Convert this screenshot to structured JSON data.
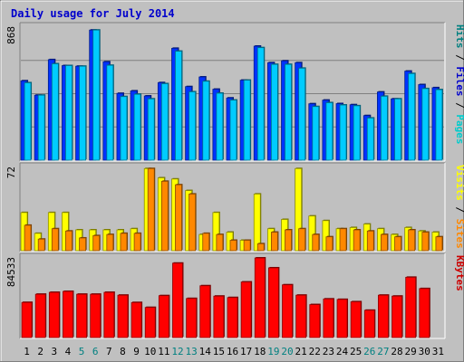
{
  "chart_data": {
    "title": "Daily usage for July 2014",
    "type": "bar",
    "days": [
      "1",
      "2",
      "3",
      "4",
      "5",
      "6",
      "7",
      "8",
      "9",
      "10",
      "11",
      "12",
      "13",
      "14",
      "15",
      "16",
      "17",
      "18",
      "19",
      "20",
      "21",
      "22",
      "23",
      "24",
      "25",
      "26",
      "27",
      "28",
      "29",
      "30",
      "31"
    ],
    "weekend_days": [
      5,
      6,
      12,
      13,
      19,
      20,
      26,
      27
    ],
    "panels": [
      {
        "id": "requests",
        "ymax_label": "868",
        "ymax": 868,
        "right_label": [
          {
            "text": "Pages",
            "color": "#00cccc"
          },
          {
            "text": " / ",
            "color": "#000000"
          },
          {
            "text": "Files",
            "color": "#0000cc"
          },
          {
            "text": " / ",
            "color": "#000000"
          },
          {
            "text": "Hits",
            "color": "#008080"
          }
        ],
        "series": [
          {
            "name": "Hits",
            "color": "#0033ff",
            "values": [
              518,
              424,
              656,
              617,
              613,
              849,
              642,
              436,
              452,
              419,
              506,
              730,
              480,
              543,
              463,
              406,
              522,
              744,
              636,
              648,
              636,
              368,
              392,
              369,
              362,
              291,
              445,
              400,
              581,
              493,
              473
            ]
          },
          {
            "name": "Files",
            "color": "#00ccff",
            "values": [
              505,
              424,
              629,
              617,
              613,
              849,
              619,
              415,
              430,
              400,
              499,
              711,
              446,
              515,
              437,
              392,
              522,
              734,
              625,
              625,
              600,
              350,
              375,
              360,
              355,
              275,
              417,
              400,
              565,
              467,
              460
            ]
          }
        ]
      },
      {
        "id": "visits",
        "ymax_label": "72",
        "ymax": 72,
        "right_label": [
          {
            "text": "Sites",
            "color": "#ff8800"
          },
          {
            "text": " / ",
            "color": "#000000"
          },
          {
            "text": "Visits",
            "color": "#ffff00"
          }
        ],
        "series": [
          {
            "name": "Visits",
            "color": "#ffff00",
            "values": [
              33,
              15,
              33,
              33,
              18,
              18,
              18,
              18,
              19,
              71,
              63,
              62,
              52,
              14,
              33,
              16,
              9,
              49,
              19,
              27,
              71,
              30,
              26,
              19,
              20,
              23,
              19,
              14,
              20,
              17,
              16
            ]
          },
          {
            "name": "Sites",
            "color": "#ff8800",
            "values": [
              22,
              10,
              19,
              17,
              11,
              13,
              14,
              15,
              15,
              71,
              60,
              57,
              49,
              15,
              14,
              9,
              9,
              6,
              16,
              18,
              19,
              14,
              12,
              19,
              18,
              17,
              14,
              12,
              18,
              16,
              12
            ]
          }
        ]
      },
      {
        "id": "kbytes",
        "ymax_label": "84533",
        "ymax": 84533,
        "right_label": [
          {
            "text": "KBytes",
            "color": "#cc0000"
          }
        ],
        "series": [
          {
            "name": "KBytes",
            "color": "#ff0000",
            "values": [
              37300,
              46000,
              48000,
              49000,
              46000,
              46000,
              48000,
              45000,
              37200,
              32000,
              44500,
              79000,
              41500,
              55000,
              44000,
              42500,
              59000,
              84500,
              74000,
              56000,
              45000,
              35000,
              41000,
              40500,
              38000,
              29000,
              45000,
              44000,
              64000,
              52000,
              0
            ]
          }
        ]
      }
    ]
  }
}
